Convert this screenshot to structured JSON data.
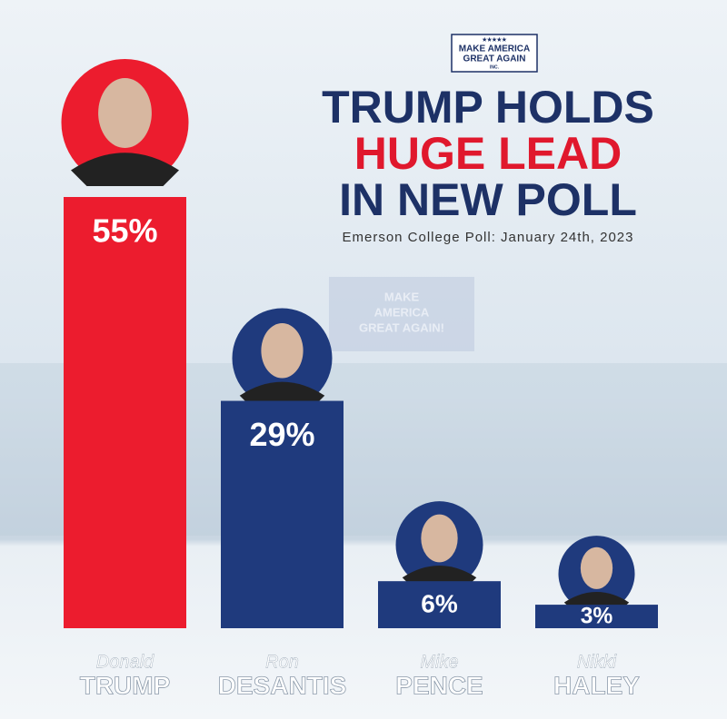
{
  "chart_data": {
    "type": "bar",
    "logo": {
      "stars": "★★★★★",
      "lines": [
        "MAKE AMERICA",
        "GREAT AGAIN"
      ],
      "small": "INC."
    },
    "title_lines": [
      {
        "text": "TRUMP HOLDS",
        "color": "#1d3166"
      },
      {
        "text": "HUGE LEAD",
        "color": "#e0182d"
      },
      {
        "text": "IN NEW POLL",
        "color": "#1d3166"
      }
    ],
    "subtitle": "Emerson College Poll: January 24th, 2023",
    "background_sign": [
      "MAKE",
      "AMERICA",
      "GREAT AGAIN!"
    ],
    "first_names": [
      "Donald",
      "Ron",
      "Mike",
      "Nikki"
    ],
    "categories": [
      "TRUMP",
      "DESANTIS",
      "PENCE",
      "HALEY"
    ],
    "values": [
      55,
      29,
      6,
      3
    ],
    "value_labels": [
      "55%",
      "29%",
      "6%",
      "3%"
    ],
    "colors": [
      "#ec1c2e",
      "#1f3a7d",
      "#1f3a7d",
      "#1f3a7d"
    ]
  }
}
